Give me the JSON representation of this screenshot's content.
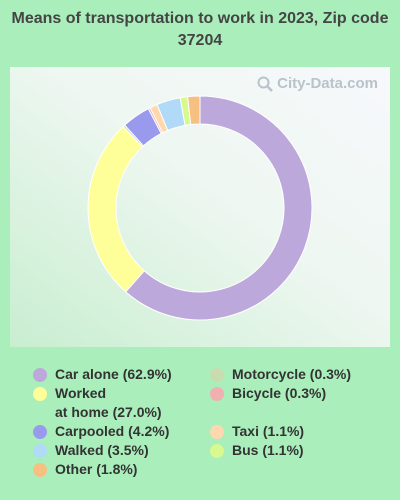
{
  "chart_data": {
    "type": "pie",
    "title": "Means of transportation to work in 2023, Zip code 37204",
    "watermark": "City-Data.com",
    "series": [
      {
        "label": "Car alone (62.9%)",
        "value": 62.9,
        "color": "#bda8dc"
      },
      {
        "label": "Worked\nat home (27.0%)",
        "value": 27.0,
        "color": "#ffff99"
      },
      {
        "label": "Motorcycle (0.3%)",
        "value": 0.3,
        "color": "#c8dcb0"
      },
      {
        "label": "Carpooled (4.2%)",
        "value": 4.2,
        "color": "#9999ee"
      },
      {
        "label": "Bicycle (0.3%)",
        "value": 0.3,
        "color": "#f0b0b0"
      },
      {
        "label": "Taxi (1.1%)",
        "value": 1.1,
        "color": "#ffd8b0"
      },
      {
        "label": "Walked (3.5%)",
        "value": 3.5,
        "color": "#b0daf8"
      },
      {
        "label": "Bus (1.1%)",
        "value": 1.1,
        "color": "#d8f890"
      },
      {
        "label": "Other (1.8%)",
        "value": 1.8,
        "color": "#f6c080"
      }
    ],
    "legend_columns": [
      [
        "Car alone (62.9%)",
        "Worked\nat home (27.0%)",
        "Carpooled (4.2%)",
        "Walked (3.5%)",
        "Other (1.8%)"
      ],
      [
        "Motorcycle (0.3%)",
        "Bicycle (0.3%)",
        "Taxi (1.1%)",
        "Bus (1.1%)"
      ]
    ],
    "legend_placement": "bottom"
  }
}
